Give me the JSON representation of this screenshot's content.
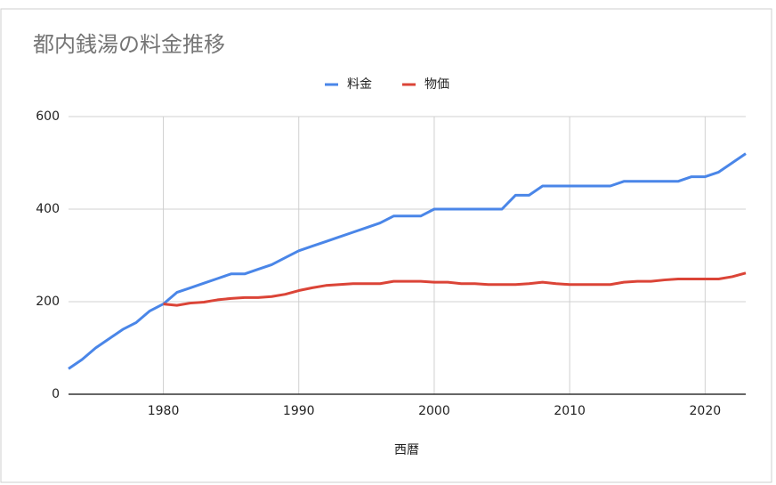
{
  "chart_data": {
    "type": "line",
    "title": "都内銭湯の料金推移",
    "x_label": "西暦",
    "x": [
      1973,
      1974,
      1975,
      1976,
      1977,
      1978,
      1979,
      1980,
      1981,
      1982,
      1983,
      1984,
      1985,
      1986,
      1987,
      1988,
      1989,
      1990,
      1991,
      1992,
      1993,
      1994,
      1995,
      1996,
      1997,
      1998,
      1999,
      2000,
      2001,
      2002,
      2003,
      2004,
      2005,
      2006,
      2007,
      2008,
      2009,
      2010,
      2011,
      2012,
      2013,
      2014,
      2015,
      2016,
      2017,
      2018,
      2019,
      2020,
      2021,
      2022,
      2023
    ],
    "series": [
      {
        "name": "料金",
        "color": "#4a86e8",
        "values": [
          55,
          75,
          100,
          120,
          140,
          155,
          180,
          195,
          220,
          230,
          240,
          250,
          260,
          260,
          270,
          280,
          295,
          310,
          320,
          330,
          340,
          350,
          360,
          370,
          385,
          385,
          385,
          400,
          400,
          400,
          400,
          400,
          400,
          430,
          430,
          450,
          450,
          450,
          450,
          450,
          450,
          460,
          460,
          460,
          460,
          460,
          470,
          470,
          480,
          500,
          520
        ]
      },
      {
        "name": "物価",
        "color": "#db4437",
        "values": [
          null,
          null,
          null,
          null,
          null,
          null,
          null,
          195,
          192,
          197,
          199,
          204,
          207,
          209,
          209,
          211,
          216,
          224,
          230,
          235,
          237,
          239,
          239,
          239,
          244,
          244,
          244,
          242,
          242,
          239,
          239,
          237,
          237,
          237,
          239,
          242,
          239,
          237,
          237,
          237,
          237,
          242,
          244,
          244,
          247,
          249,
          249,
          249,
          249,
          254,
          262
        ]
      }
    ],
    "xlim": [
      1973,
      2023
    ],
    "xticks": [
      1980,
      1990,
      2000,
      2010,
      2020
    ],
    "ylim": [
      0,
      600
    ],
    "yticks": [
      0,
      200,
      400,
      600
    ],
    "grid": true,
    "legend": "top"
  }
}
